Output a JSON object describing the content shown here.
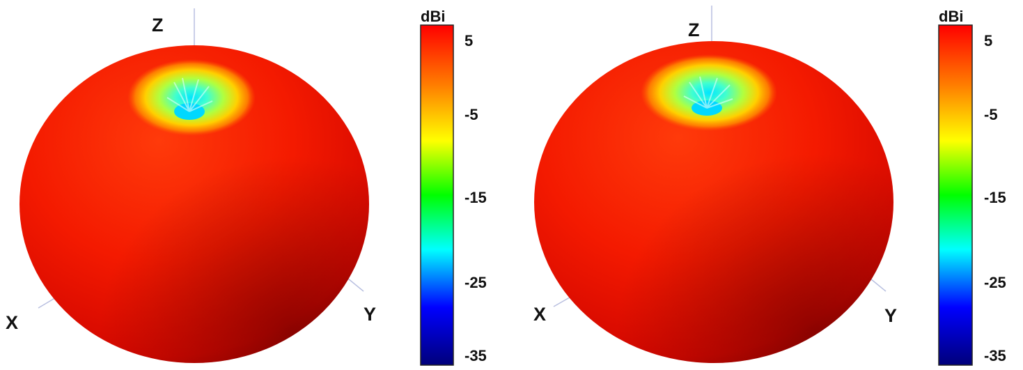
{
  "colors": {
    "background": "#ffffff",
    "axis_line": "#b8bfe0",
    "scale_stops": [
      "#ff0000",
      "#ff8000",
      "#ffff00",
      "#00ff00",
      "#00ffff",
      "#0000ff",
      "#00007a"
    ]
  },
  "panels": [
    {
      "axes": {
        "z": "Z",
        "x": "X",
        "y": "Y"
      },
      "colorbar": {
        "unit": "dBi",
        "ticks": [
          "5",
          "-5",
          "-15",
          "-25",
          "-35"
        ]
      }
    },
    {
      "axes": {
        "z": "Z",
        "x": "X",
        "y": "Y"
      },
      "colorbar": {
        "unit": "dBi",
        "ticks": [
          "5",
          "-5",
          "-15",
          "-25",
          "-35"
        ]
      }
    }
  ]
}
